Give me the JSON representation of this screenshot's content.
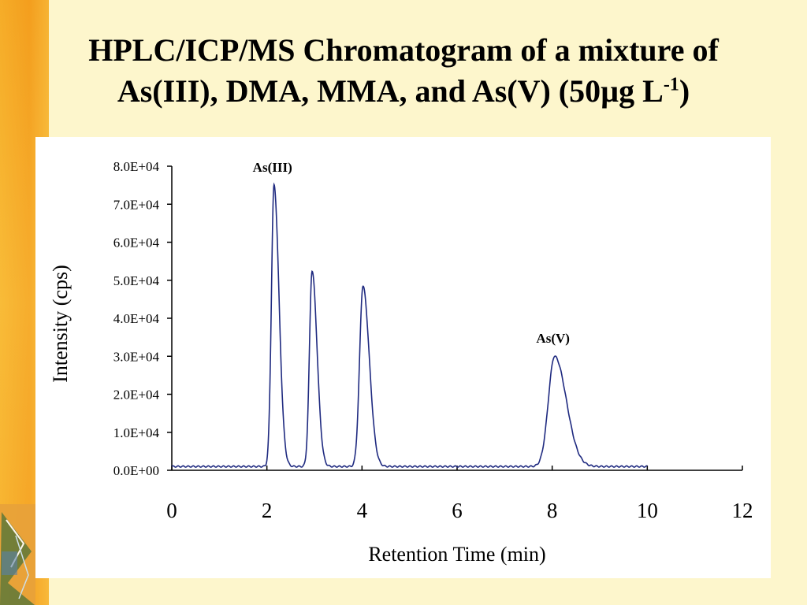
{
  "slide": {
    "title_line1": "HPLC/ICP/MS Chromatogram of a mixture of",
    "title_line2_main": "As(III), DMA, MMA, and As(V) (50µg L",
    "title_line2_sup": "-1",
    "title_line2_end": ")",
    "background_color": "#fdf6cc",
    "accent_color": "#f5a623"
  },
  "chart_data": {
    "type": "line",
    "xlabel": "Retention Time (min)",
    "ylabel": "Intensity (cps)",
    "xlim": [
      0,
      12
    ],
    "ylim": [
      0,
      80000
    ],
    "x_ticks": [
      0,
      2,
      4,
      6,
      8,
      10,
      12
    ],
    "x_tick_labels": [
      "0",
      "2",
      "4",
      "6",
      "8",
      "10",
      "12"
    ],
    "y_ticks": [
      0,
      10000,
      20000,
      30000,
      40000,
      50000,
      60000,
      70000,
      80000
    ],
    "y_tick_labels": [
      "0.0E+00",
      "1.0E+04",
      "2.0E+04",
      "3.0E+04",
      "4.0E+04",
      "5.0E+04",
      "6.0E+04",
      "7.0E+04",
      "8.0E+04"
    ],
    "grid": false,
    "line_color": "#1f2a80",
    "baseline": 1000,
    "trace_range": [
      0,
      10
    ],
    "peaks": [
      {
        "rt": 2.15,
        "height": 74000,
        "label": "As(III)"
      },
      {
        "rt": 2.95,
        "height": 51500,
        "label": ""
      },
      {
        "rt": 4.02,
        "height": 47500,
        "label": ""
      },
      {
        "rt": 8.05,
        "height": 29000,
        "label": "As(V)"
      }
    ]
  }
}
